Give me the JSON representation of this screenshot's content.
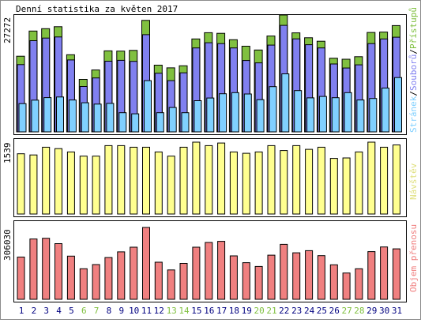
{
  "title": "Denní statistika za květen 2017",
  "colors": {
    "background": "#ffffff",
    "border": "#000000",
    "hits": "#80c040",
    "files": "#8080f0",
    "pages": "#80d0ff",
    "visits": "#ffff90",
    "kbytes": "#f08080",
    "label_hits": "#80c040",
    "label_files": "#8080f0",
    "label_pages": "#80d0ff",
    "label_visits": "#e0e080",
    "label_kbytes": "#f08080",
    "weekday": "#000080",
    "weekend": "#80c040"
  },
  "top_panel": {
    "ymax_label": "27272",
    "legend": {
      "pages": "Stránek",
      "sep1": "/",
      "files": "Souborů",
      "sep2": "/",
      "hits": "Přístupů"
    }
  },
  "mid_panel": {
    "ymax_label": "1539",
    "legend": "Návštěv"
  },
  "bottom_panel": {
    "ymax_label": "306030",
    "legend": "Objem přenosu"
  },
  "chart_data": [
    {
      "type": "bar",
      "title": "Denní statistika za květen 2017",
      "categories": [
        "1",
        "2",
        "3",
        "4",
        "5",
        "6",
        "7",
        "8",
        "9",
        "10",
        "11",
        "12",
        "13",
        "14",
        "15",
        "16",
        "17",
        "18",
        "19",
        "20",
        "21",
        "22",
        "23",
        "24",
        "25",
        "26",
        "27",
        "28",
        "29",
        "30",
        "31"
      ],
      "weekend": [
        false,
        false,
        false,
        false,
        false,
        true,
        true,
        false,
        false,
        false,
        false,
        false,
        true,
        true,
        false,
        false,
        false,
        false,
        false,
        true,
        true,
        false,
        false,
        false,
        false,
        false,
        true,
        true,
        false,
        false,
        false
      ],
      "ylim": [
        0,
        27272
      ],
      "series": [
        {
          "name": "Přístupů",
          "values": [
            17650,
            23530,
            24090,
            24540,
            18000,
            12260,
            14450,
            18900,
            18850,
            19010,
            26010,
            15580,
            14950,
            15420,
            21680,
            23150,
            23000,
            21500,
            20000,
            19100,
            22370,
            27272,
            23100,
            21970,
            21150,
            17200,
            16950,
            17540,
            23200,
            23300,
            24800
          ]
        },
        {
          "name": "Souborů",
          "values": [
            15700,
            21290,
            21900,
            22150,
            16790,
            10600,
            12590,
            16500,
            16690,
            16450,
            22690,
            13700,
            11950,
            13790,
            19590,
            20800,
            20600,
            19590,
            16650,
            16100,
            20250,
            24850,
            21700,
            20350,
            19590,
            15850,
            14900,
            15650,
            20600,
            21690,
            22100
          ]
        },
        {
          "name": "Stránek",
          "values": [
            6600,
            7400,
            8000,
            8150,
            7450,
            6800,
            6490,
            6660,
            4470,
            4220,
            11950,
            4470,
            5700,
            4470,
            7270,
            7900,
            8900,
            9150,
            8850,
            7510,
            10560,
            13540,
            9630,
            7950,
            8280,
            7970,
            9150,
            7450,
            7800,
            10230,
            12680
          ]
        }
      ]
    },
    {
      "type": "bar",
      "categories": [
        "1",
        "2",
        "3",
        "4",
        "5",
        "6",
        "7",
        "8",
        "9",
        "10",
        "11",
        "12",
        "13",
        "14",
        "15",
        "16",
        "17",
        "18",
        "19",
        "20",
        "21",
        "22",
        "23",
        "24",
        "25",
        "26",
        "27",
        "28",
        "29",
        "30",
        "31"
      ],
      "ylim": [
        0,
        1539
      ],
      "series": [
        {
          "name": "Návštěv",
          "values": [
            1290,
            1265,
            1430,
            1400,
            1330,
            1240,
            1240,
            1465,
            1465,
            1430,
            1430,
            1330,
            1240,
            1430,
            1539,
            1465,
            1520,
            1330,
            1300,
            1330,
            1465,
            1360,
            1465,
            1385,
            1430,
            1190,
            1200,
            1330,
            1539,
            1430,
            1480
          ]
        }
      ]
    },
    {
      "type": "bar",
      "categories": [
        "1",
        "2",
        "3",
        "4",
        "5",
        "6",
        "7",
        "8",
        "9",
        "10",
        "11",
        "12",
        "13",
        "14",
        "15",
        "16",
        "17",
        "18",
        "19",
        "20",
        "21",
        "22",
        "23",
        "24",
        "25",
        "26",
        "27",
        "28",
        "29",
        "30",
        "31"
      ],
      "ylim": [
        0,
        306030
      ],
      "series": [
        {
          "name": "Objem přenosu",
          "values": [
            180000,
            257000,
            260000,
            237000,
            184000,
            130000,
            148000,
            178000,
            202000,
            222000,
            306030,
            158000,
            125000,
            153000,
            222000,
            242000,
            247000,
            185000,
            156000,
            140000,
            188000,
            234000,
            198000,
            207000,
            186000,
            147000,
            112000,
            130000,
            203000,
            223000,
            215000
          ]
        }
      ]
    }
  ]
}
